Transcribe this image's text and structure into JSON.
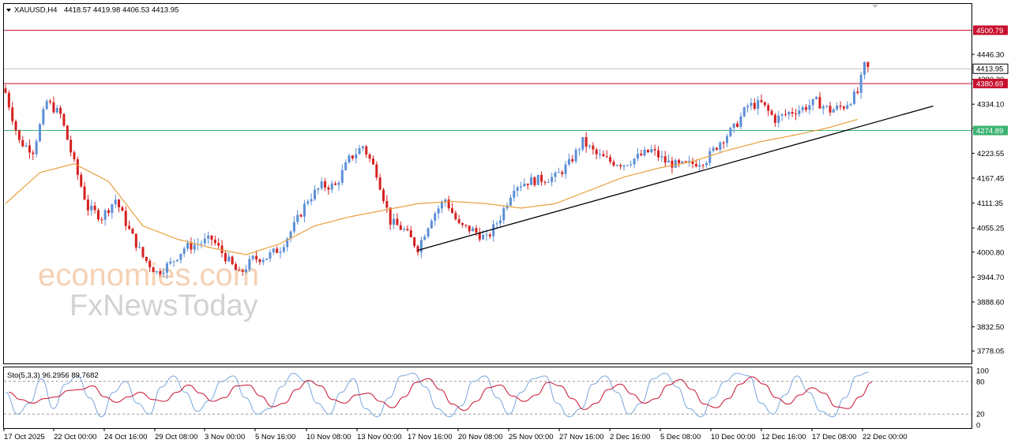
{
  "header": {
    "symbol": "XAUUSD,H4",
    "ohlc": "4418.57 4419.98 4406.53 4413.95"
  },
  "watermark": {
    "line1": "economies.com",
    "line2": "FxNewsToday"
  },
  "price_tags": [
    {
      "name": "resistance-4500",
      "value": 4500.79,
      "label": "4500.79",
      "color": "#c8102e",
      "line": true
    },
    {
      "name": "current-price",
      "value": 4413.95,
      "label": "4413.95",
      "color": "#000000",
      "line": true,
      "line_color": "#bfbfbf"
    },
    {
      "name": "support-4380",
      "value": 4380.69,
      "label": "4380.69",
      "color": "#c8102e",
      "line": true
    },
    {
      "name": "support-4274",
      "value": 4274.89,
      "label": "4274.89",
      "color": "#3cb371",
      "line": true
    }
  ],
  "stochastic": {
    "label": "Sto(5,3,3) 96.2956 89.7682",
    "levels": [
      "100",
      "80",
      "20",
      "0"
    ]
  },
  "colors": {
    "bull": "#5b8fd6",
    "bear": "#d62020",
    "ma": "#e8a03c",
    "trend": "#000000",
    "k_line": "#7aa7dd",
    "d_line": "#c8102e"
  },
  "chart_data": {
    "type": "candlestick",
    "symbol": "XAUUSD",
    "timeframe": "H4",
    "ylim": [
      3750,
      4560
    ],
    "y_ticks": [
      "4446.30",
      "4390.30",
      "4334.10",
      "4279.80",
      "4223.55",
      "4167.45",
      "4111.35",
      "4055.25",
      "4000.80",
      "3944.70",
      "3888.60",
      "3832.50",
      "3778.05"
    ],
    "x_ticks": [
      "17 Oct 2025",
      "22 Oct 00:00",
      "24 Oct 16:00",
      "29 Oct 08:00",
      "3 Nov 00:00",
      "5 Nov 16:00",
      "10 Nov 08:00",
      "13 Nov 00:00",
      "17 Nov 16:00",
      "20 Nov 08:00",
      "25 Nov 00:00",
      "27 Nov 16:00",
      "2 Dec 16:00",
      "5 Dec 08:00",
      "10 Dec 00:00",
      "12 Dec 16:00",
      "17 Dec 08:00",
      "22 Dec 00:00"
    ],
    "close_anchors": [
      [
        0,
        4360
      ],
      [
        4,
        4250
      ],
      [
        8,
        4230
      ],
      [
        12,
        4340
      ],
      [
        16,
        4310
      ],
      [
        20,
        4200
      ],
      [
        24,
        4100
      ],
      [
        28,
        4080
      ],
      [
        32,
        4120
      ],
      [
        36,
        4050
      ],
      [
        40,
        3990
      ],
      [
        44,
        3955
      ],
      [
        48,
        3975
      ],
      [
        52,
        4010
      ],
      [
        56,
        4020
      ],
      [
        60,
        4030
      ],
      [
        64,
        3990
      ],
      [
        68,
        3950
      ],
      [
        72,
        3985
      ],
      [
        76,
        3990
      ],
      [
        80,
        4010
      ],
      [
        84,
        4060
      ],
      [
        88,
        4120
      ],
      [
        92,
        4150
      ],
      [
        96,
        4150
      ],
      [
        100,
        4210
      ],
      [
        104,
        4240
      ],
      [
        108,
        4180
      ],
      [
        112,
        4070
      ],
      [
        116,
        4050
      ],
      [
        120,
        4010
      ],
      [
        124,
        4080
      ],
      [
        128,
        4120
      ],
      [
        132,
        4060
      ],
      [
        136,
        4050
      ],
      [
        140,
        4030
      ],
      [
        144,
        4080
      ],
      [
        148,
        4150
      ],
      [
        152,
        4160
      ],
      [
        156,
        4165
      ],
      [
        160,
        4170
      ],
      [
        164,
        4200
      ],
      [
        168,
        4250
      ],
      [
        172,
        4220
      ],
      [
        176,
        4205
      ],
      [
        180,
        4200
      ],
      [
        184,
        4215
      ],
      [
        188,
        4230
      ],
      [
        192,
        4205
      ],
      [
        196,
        4195
      ],
      [
        200,
        4200
      ],
      [
        204,
        4210
      ],
      [
        208,
        4250
      ],
      [
        212,
        4280
      ],
      [
        216,
        4330
      ],
      [
        220,
        4335
      ],
      [
        224,
        4300
      ],
      [
        228,
        4315
      ],
      [
        232,
        4325
      ],
      [
        236,
        4340
      ],
      [
        240,
        4320
      ],
      [
        244,
        4330
      ],
      [
        248,
        4360
      ],
      [
        250,
        4420
      ],
      [
        251,
        4413.95
      ]
    ],
    "moving_average": [
      [
        0,
        4110
      ],
      [
        10,
        4180
      ],
      [
        20,
        4200
      ],
      [
        30,
        4160
      ],
      [
        40,
        4060
      ],
      [
        50,
        4030
      ],
      [
        60,
        4010
      ],
      [
        70,
        3995
      ],
      [
        80,
        4020
      ],
      [
        90,
        4060
      ],
      [
        100,
        4080
      ],
      [
        110,
        4095
      ],
      [
        120,
        4110
      ],
      [
        130,
        4115
      ],
      [
        140,
        4110
      ],
      [
        150,
        4100
      ],
      [
        160,
        4110
      ],
      [
        170,
        4140
      ],
      [
        180,
        4170
      ],
      [
        190,
        4190
      ],
      [
        200,
        4205
      ],
      [
        210,
        4230
      ],
      [
        220,
        4250
      ],
      [
        230,
        4265
      ],
      [
        240,
        4282
      ],
      [
        248,
        4300
      ]
    ],
    "trendline": {
      "start": [
        120,
        4005
      ],
      "end": [
        270,
        4330
      ]
    },
    "stoch_k": [
      60,
      20,
      40,
      85,
      30,
      75,
      90,
      50,
      15,
      60,
      80,
      40,
      20,
      70,
      90,
      60,
      25,
      45,
      80,
      90,
      50,
      20,
      30,
      70,
      95,
      80,
      40,
      20,
      60,
      85,
      30,
      15,
      50,
      90,
      95,
      70,
      30,
      15,
      35,
      80,
      90,
      50,
      20,
      60,
      85,
      90,
      40,
      15,
      30,
      75,
      90,
      60,
      20,
      40,
      85,
      95,
      70,
      30,
      15,
      50,
      80,
      95,
      90,
      40,
      20,
      55,
      90,
      60,
      25,
      15,
      50,
      90,
      97
    ]
  }
}
